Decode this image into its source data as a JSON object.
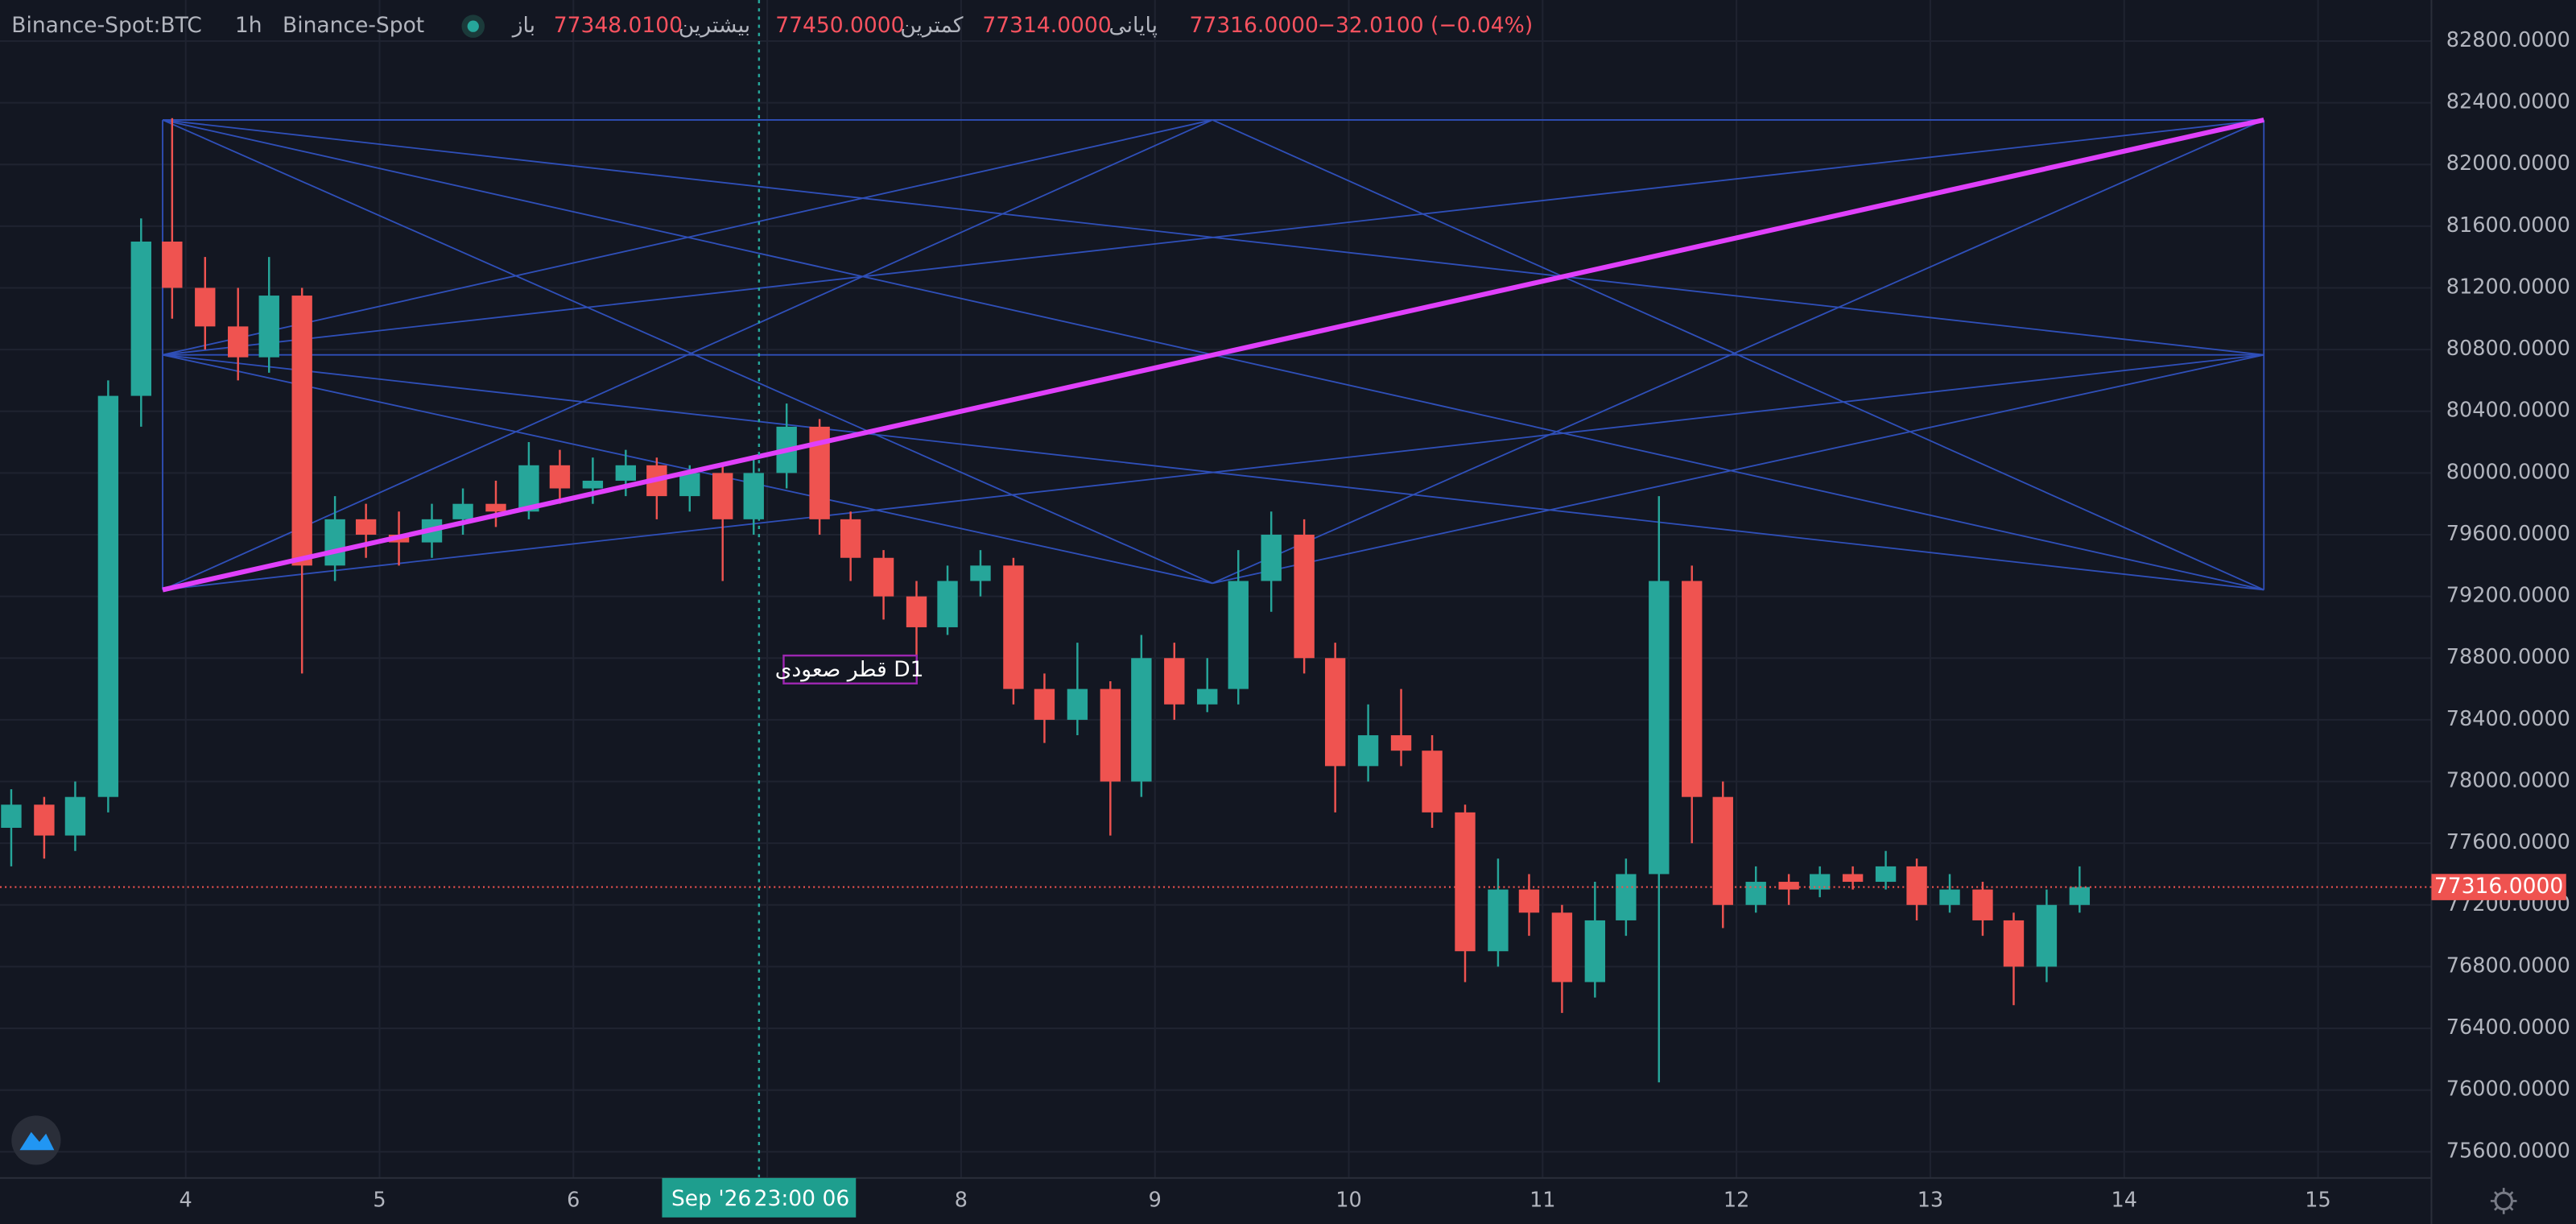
{
  "header": {
    "symbol": "Binance-Spot:BTC",
    "interval": "1h",
    "exchange": "Binance-Spot",
    "open_label": "باز",
    "open": "77348.0100",
    "high_label": "بیشترین",
    "high": "77450.0000",
    "low_label": "کمترین",
    "low": "77314.0000",
    "close_label": "پایانی",
    "close": "77316.0000",
    "change": "−32.0100 (−0.04%)"
  },
  "crosshair": {
    "date": "Sep '26",
    "time": "23:00 06"
  },
  "annotation": "قطر صعودی D1",
  "chart_data": {
    "type": "candlestick",
    "up_color": "#26a69a",
    "down_color": "#ef5350",
    "grid": true,
    "xlim": [
      3.042,
      15.585
    ],
    "ylim": [
      75430,
      83066
    ],
    "xticks": [
      4,
      5,
      6,
      7,
      8,
      9,
      10,
      11,
      12,
      13,
      14,
      15
    ],
    "yticks": [
      {
        "value": 75600,
        "label": "75600.0000"
      },
      {
        "value": 76000,
        "label": "76000.0000"
      },
      {
        "value": 76400,
        "label": "76400.0000"
      },
      {
        "value": 76800,
        "label": "76800.0000"
      },
      {
        "value": 77200,
        "label": "77200.0000"
      },
      {
        "value": 77600,
        "label": "77600.0000"
      },
      {
        "value": 78000,
        "label": "78000.0000"
      },
      {
        "value": 78400,
        "label": "78400.0000"
      },
      {
        "value": 78800,
        "label": "78800.0000"
      },
      {
        "value": 79200,
        "label": "79200.0000"
      },
      {
        "value": 79600,
        "label": "79600.0000"
      },
      {
        "value": 80000,
        "label": "80000.0000"
      },
      {
        "value": 80400,
        "label": "80400.0000"
      },
      {
        "value": 80800,
        "label": "80800.0000"
      },
      {
        "value": 81200,
        "label": "81200.0000"
      },
      {
        "value": 81600,
        "label": "81600.0000"
      },
      {
        "value": 82000,
        "label": "82000.0000"
      },
      {
        "value": 82400,
        "label": "82400.0000"
      },
      {
        "value": 82800,
        "label": "82800.0000"
      }
    ],
    "last_price": {
      "value": 77316,
      "label": "77316.0000"
    },
    "x": [
      3.1,
      3.27,
      3.43,
      3.6,
      3.77,
      3.93,
      4.1,
      4.27,
      4.43,
      4.6,
      4.77,
      4.93,
      5.1,
      5.27,
      5.43,
      5.6,
      5.77,
      5.93,
      6.1,
      6.27,
      6.43,
      6.6,
      6.77,
      6.93,
      7.1,
      7.27,
      7.43,
      7.6,
      7.77,
      7.93,
      8.1,
      8.27,
      8.43,
      8.6,
      8.77,
      8.93,
      9.1,
      9.27,
      9.43,
      9.6,
      9.77,
      9.93,
      10.1,
      10.27,
      10.43,
      10.6,
      10.77,
      10.93,
      11.1,
      11.27,
      11.43,
      11.6,
      11.77,
      11.93,
      12.1,
      12.27,
      12.43,
      12.6,
      12.77,
      12.93,
      13.1,
      13.27,
      13.43,
      13.6,
      13.77
    ],
    "open": [
      77700,
      77850,
      77650,
      77900,
      80500,
      81500,
      81200,
      80950,
      80750,
      81150,
      79400,
      79700,
      79600,
      79550,
      79700,
      79800,
      79750,
      80050,
      79900,
      79950,
      80050,
      79850,
      80000,
      79700,
      80000,
      80300,
      79700,
      79450,
      79200,
      79000,
      79300,
      79400,
      78600,
      78400,
      78600,
      78000,
      78800,
      78500,
      78600,
      79300,
      79600,
      78800,
      78100,
      78300,
      78200,
      77800,
      76900,
      77300,
      77150,
      76700,
      77100,
      77400,
      79300,
      77900,
      77200,
      77350,
      77300,
      77400,
      77350,
      77450,
      77200,
      77300,
      77100,
      76800,
      77200
    ],
    "high": [
      77950,
      77900,
      78000,
      80600,
      81650,
      82300,
      81400,
      81200,
      81400,
      81200,
      79850,
      79800,
      79750,
      79800,
      79900,
      79950,
      80200,
      80150,
      80100,
      80150,
      80100,
      80050,
      80050,
      80100,
      80450,
      80350,
      79750,
      79500,
      79300,
      79400,
      79500,
      79450,
      78700,
      78900,
      78650,
      78950,
      78900,
      78800,
      79500,
      79750,
      79700,
      78900,
      78500,
      78600,
      78300,
      77850,
      77500,
      77400,
      77200,
      77350,
      77500,
      79850,
      79400,
      78000,
      77450,
      77400,
      77450,
      77450,
      77550,
      77500,
      77400,
      77350,
      77150,
      77300,
      77450
    ],
    "low": [
      77450,
      77500,
      77550,
      77800,
      80300,
      81000,
      80800,
      80600,
      80650,
      78700,
      79300,
      79450,
      79400,
      79450,
      79600,
      79650,
      79700,
      79800,
      79800,
      79850,
      79700,
      79750,
      79300,
      79600,
      79900,
      79600,
      79300,
      79050,
      78800,
      78950,
      79200,
      78500,
      78250,
      78300,
      77650,
      77900,
      78400,
      78450,
      78500,
      79100,
      78700,
      77800,
      78000,
      78100,
      77700,
      76700,
      76800,
      77000,
      76500,
      76600,
      77000,
      76050,
      77600,
      77050,
      77150,
      77200,
      77250,
      77300,
      77300,
      77100,
      77150,
      77000,
      76550,
      76700,
      77150
    ],
    "close": [
      77850,
      77650,
      77900,
      80500,
      81500,
      81200,
      80950,
      80750,
      81150,
      79400,
      79700,
      79600,
      79550,
      79700,
      79800,
      79750,
      80050,
      79900,
      79950,
      80050,
      79850,
      80000,
      79700,
      80000,
      80300,
      79700,
      79450,
      79200,
      79000,
      79300,
      79400,
      78600,
      78400,
      78600,
      78000,
      78800,
      78500,
      78600,
      79300,
      79600,
      78800,
      78100,
      78300,
      78200,
      77800,
      76900,
      77300,
      77150,
      76700,
      77100,
      77400,
      79300,
      77900,
      77200,
      77350,
      77300,
      77400,
      77350,
      77450,
      77200,
      77300,
      77100,
      76800,
      77200,
      77316
    ]
  }
}
